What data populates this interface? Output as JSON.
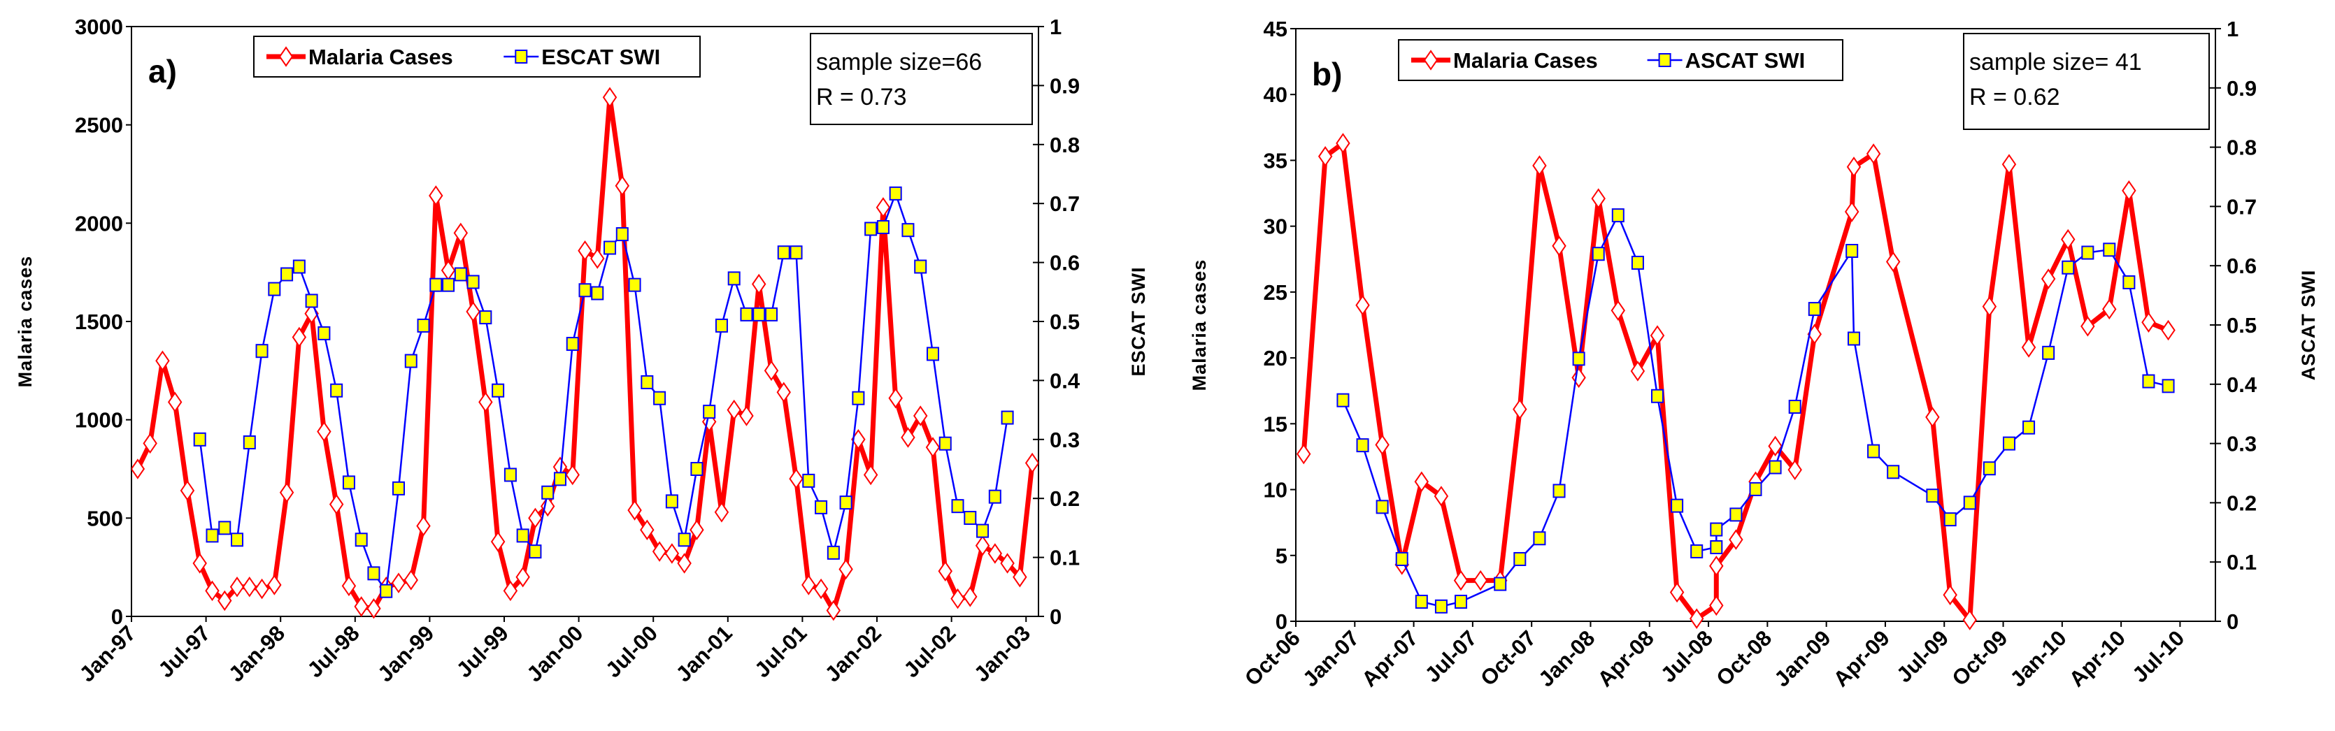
{
  "chart_data": [
    {
      "type": "line",
      "panel_label": "a)",
      "ylabel": "Malaria  cases",
      "y2label": "ESCAT  SWI",
      "ylim": [
        0,
        3000
      ],
      "y2lim": [
        0,
        1
      ],
      "yticks": [
        "0",
        "500",
        "1000",
        "1500",
        "2000",
        "2500",
        "3000"
      ],
      "y2ticks": [
        "0",
        "0.1",
        "0.2",
        "0.3",
        "0.4",
        "0.5",
        "0.6",
        "0.7",
        "0.8",
        "0.9",
        "1"
      ],
      "x_unit": "months since Jan-97",
      "xlim": [
        0,
        73
      ],
      "xticks": [
        {
          "m": 0,
          "label": "Jan-97"
        },
        {
          "m": 6,
          "label": "Jul-97"
        },
        {
          "m": 12,
          "label": "Jan-98"
        },
        {
          "m": 18,
          "label": "Jul-98"
        },
        {
          "m": 24,
          "label": "Jan-99"
        },
        {
          "m": 30,
          "label": "Jul-99"
        },
        {
          "m": 36,
          "label": "Jan-00"
        },
        {
          "m": 42,
          "label": "Jul-00"
        },
        {
          "m": 48,
          "label": "Jan-01"
        },
        {
          "m": 54,
          "label": "Jul-01"
        },
        {
          "m": 60,
          "label": "Jan-02"
        },
        {
          "m": 66,
          "label": "Jul-02"
        },
        {
          "m": 72,
          "label": "Jan-03"
        }
      ],
      "annotation": {
        "line1": "sample size=66",
        "line2": "R = 0.73"
      },
      "series": [
        {
          "name": "Malaria Cases",
          "axis": "left",
          "color": "#ff0000",
          "marker": "diamond",
          "x_start": 0.5,
          "x_step": 1,
          "values": [
            750,
            880,
            1300,
            1090,
            640,
            270,
            130,
            80,
            150,
            150,
            140,
            160,
            630,
            1420,
            1540,
            940,
            570,
            155,
            50,
            40,
            150,
            170,
            185,
            460,
            2140,
            1760,
            1950,
            1550,
            1090,
            380,
            130,
            200,
            500,
            560,
            760,
            720,
            1860,
            1820,
            2640,
            2190,
            540,
            440,
            330,
            320,
            270,
            440,
            990,
            530,
            1050,
            1020,
            1690,
            1250,
            1140,
            700,
            160,
            140,
            30,
            240,
            900,
            720,
            2080,
            1110,
            910,
            1020,
            860,
            230,
            90,
            100,
            360,
            320,
            270,
            200,
            780
          ]
        },
        {
          "name": "ESCAT SWI",
          "axis": "right",
          "color": "#0000ff",
          "marker": "square",
          "x_start": 5.5,
          "x_step": 1,
          "values": [
            0.3,
            0.137,
            0.15,
            0.13,
            0.295,
            0.45,
            0.555,
            0.58,
            0.593,
            0.535,
            0.48,
            0.383,
            0.227,
            0.13,
            0.073,
            0.043,
            0.217,
            0.433,
            0.493,
            0.562,
            0.562,
            0.58,
            0.567,
            0.507,
            0.383,
            0.24,
            0.137,
            0.11,
            0.21,
            0.233,
            0.462,
            0.553,
            0.548,
            0.625,
            0.648,
            0.562,
            0.397,
            0.37,
            0.195,
            0.13,
            0.25,
            0.347,
            0.493,
            0.573,
            0.512,
            0.512,
            0.512,
            0.617,
            0.617,
            0.23,
            0.185,
            0.108,
            0.193,
            0.37,
            0.657,
            0.66,
            0.717,
            0.655,
            0.593,
            0.445,
            0.293,
            0.187,
            0.167,
            0.145,
            0.203,
            0.337
          ]
        }
      ]
    },
    {
      "type": "line",
      "panel_label": "b)",
      "ylabel": "Malaria  cases",
      "y2label": "ASCAT  SWI",
      "ylim": [
        0,
        45
      ],
      "y2lim": [
        0,
        1
      ],
      "yticks": [
        "0",
        "5",
        "10",
        "15",
        "20",
        "25",
        "30",
        "35",
        "40",
        "45"
      ],
      "y2ticks": [
        "0",
        "0.1",
        "0.2",
        "0.3",
        "0.4",
        "0.5",
        "0.6",
        "0.7",
        "0.8",
        "0.9",
        "1"
      ],
      "x_unit": "months since Oct-06",
      "xlim": [
        0,
        46.8
      ],
      "xticks": [
        {
          "m": 0,
          "label": "Oct-06"
        },
        {
          "m": 3,
          "label": "Jan-07"
        },
        {
          "m": 6,
          "label": "Apr-07"
        },
        {
          "m": 9,
          "label": "Jul-07"
        },
        {
          "m": 12,
          "label": "Oct-07"
        },
        {
          "m": 15,
          "label": "Jan-08"
        },
        {
          "m": 18,
          "label": "Apr-08"
        },
        {
          "m": 21,
          "label": "Jul-08"
        },
        {
          "m": 24,
          "label": "Oct-08"
        },
        {
          "m": 27,
          "label": "Jan-09"
        },
        {
          "m": 30,
          "label": "Apr-09"
        },
        {
          "m": 33,
          "label": "Jul-09"
        },
        {
          "m": 36,
          "label": "Oct-09"
        },
        {
          "m": 39,
          "label": "Jan-10"
        },
        {
          "m": 42,
          "label": "Apr-10"
        },
        {
          "m": 45,
          "label": "Jul-10"
        }
      ],
      "annotation": {
        "line1": "sample size= 41",
        "line2": "R = 0.62"
      },
      "series": [
        {
          "name": "Malaria Cases",
          "axis": "left",
          "color": "#ff0000",
          "marker": "diamond",
          "x": [
            0.4,
            1.5,
            2.4,
            3.4,
            4.4,
            5.4,
            6.4,
            7.4,
            8.4,
            9.4,
            10.4,
            11.4,
            12.4,
            13.4,
            14.4,
            15.4,
            16.4,
            17.4,
            18.4,
            19.4,
            20.4,
            21.4,
            21.4,
            22.4,
            23.4,
            24.4,
            25.4,
            26.4,
            28.3,
            28.4,
            29.4,
            30.4,
            32.4,
            33.3,
            34.3,
            35.3,
            36.3,
            37.3,
            38.3,
            39.3,
            40.3,
            41.4,
            42.4,
            43.4,
            44.4
          ],
          "values": [
            12.7,
            35.3,
            36.3,
            24,
            13.4,
            4.3,
            10.6,
            9.5,
            3.1,
            3.1,
            3.1,
            16.1,
            34.6,
            28.5,
            18.5,
            32.1,
            23.6,
            19,
            21.7,
            2.2,
            0.2,
            1.2,
            4.2,
            6.2,
            10.6,
            13.3,
            11.5,
            21.8,
            31.1,
            34.5,
            35.5,
            27.3,
            15.5,
            2,
            0.1,
            23.9,
            34.7,
            20.8,
            26,
            29,
            22.4,
            23.7,
            32.7,
            22.7,
            22.1
          ]
        },
        {
          "name": "ASCAT SWI",
          "axis": "right",
          "color": "#0000ff",
          "marker": "square",
          "x": [
            2.4,
            3.4,
            4.4,
            5.4,
            6.4,
            7.4,
            8.4,
            10.4,
            11.4,
            12.4,
            13.4,
            14.4,
            15.4,
            16.4,
            17.4,
            18.4,
            19.4,
            20.4,
            21.4,
            21.4,
            22.4,
            23.4,
            24.4,
            25.4,
            26.4,
            28.3,
            28.4,
            29.4,
            30.4,
            32.4,
            33.3,
            34.3,
            35.3,
            36.3,
            37.3,
            38.3,
            39.3,
            40.3,
            41.4,
            42.4,
            43.4,
            44.4
          ],
          "values": [
            0.373,
            0.297,
            0.193,
            0.105,
            0.033,
            0.025,
            0.033,
            0.063,
            0.105,
            0.14,
            0.22,
            0.443,
            0.62,
            0.685,
            0.605,
            0.38,
            0.195,
            0.118,
            0.125,
            0.155,
            0.18,
            0.223,
            0.26,
            0.362,
            0.527,
            0.625,
            0.477,
            0.287,
            0.252,
            0.212,
            0.172,
            0.2,
            0.258,
            0.3,
            0.327,
            0.453,
            0.597,
            0.622,
            0.627,
            0.572,
            0.405,
            0.397
          ]
        }
      ]
    }
  ]
}
